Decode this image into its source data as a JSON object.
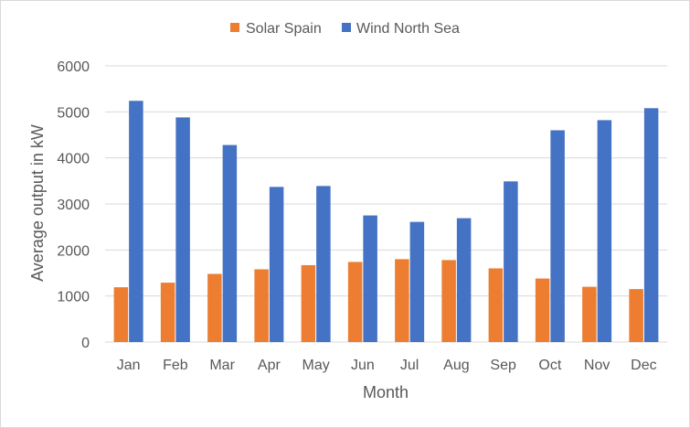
{
  "chart_data": {
    "type": "bar",
    "title": "",
    "xlabel": "Month",
    "ylabel": "Average output in kW",
    "categories": [
      "Jan",
      "Feb",
      "Mar",
      "Apr",
      "May",
      "Jun",
      "Jul",
      "Aug",
      "Sep",
      "Oct",
      "Nov",
      "Dec"
    ],
    "series": [
      {
        "name": "Solar Spain",
        "color": "#ED7D31",
        "values": [
          1190,
          1290,
          1480,
          1580,
          1670,
          1740,
          1800,
          1780,
          1600,
          1380,
          1200,
          1150
        ]
      },
      {
        "name": "Wind North Sea",
        "color": "#4472C4",
        "values": [
          5240,
          4880,
          4280,
          3370,
          3390,
          2750,
          2610,
          2690,
          3490,
          4600,
          4820,
          5080
        ]
      }
    ],
    "ylim": [
      0,
      6000
    ],
    "yticks": [
      0,
      1000,
      2000,
      3000,
      4000,
      5000,
      6000
    ],
    "grid": true,
    "legend_position": "top"
  }
}
